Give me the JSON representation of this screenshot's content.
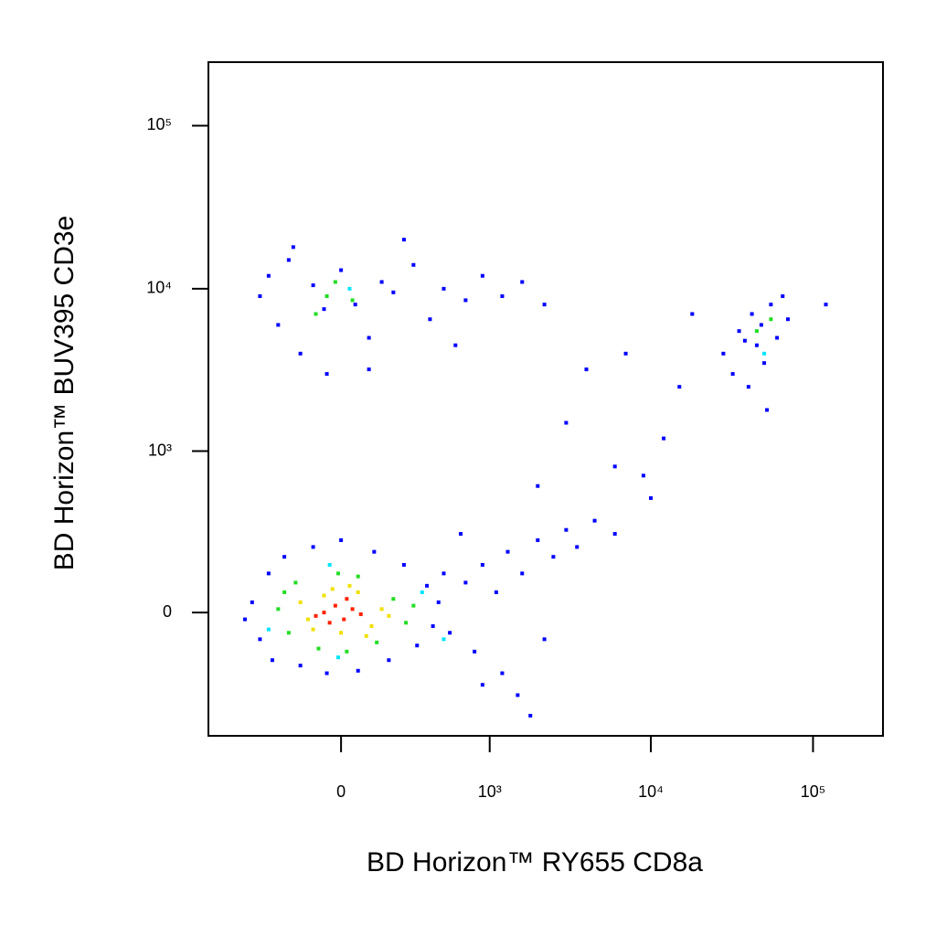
{
  "chart_data": {
    "type": "scatter",
    "xlabel": "BD Horizon™ RY655 CD8a",
    "ylabel": "BD Horizon™ BUV395 CD3e",
    "xscale": "biexponential",
    "yscale": "biexponential",
    "xlim": [
      -790,
      270000
    ],
    "ylim": [
      -572,
      245000
    ],
    "xticks": [
      0,
      {
        "value": 1000,
        "label": "10³"
      },
      {
        "value": 10000,
        "label": "10⁴"
      },
      {
        "value": 100000,
        "label": "10⁵"
      }
    ],
    "yticks": [
      0,
      {
        "value": 1000,
        "label": "10³"
      },
      {
        "value": 10000,
        "label": "10⁴"
      },
      {
        "value": 100000,
        "label": "10⁵"
      }
    ],
    "series": [
      {
        "color": "#0000ff",
        "x": [
          -400,
          -350,
          -300,
          -280,
          -220,
          -150,
          -100,
          -50,
          0,
          60,
          120,
          180,
          250,
          320,
          380,
          420,
          460,
          -450,
          500,
          550,
          700,
          900,
          1100,
          1300,
          1600,
          2000,
          2500,
          3000,
          3500,
          4500,
          6000,
          800,
          1200,
          1500,
          1800,
          2200,
          900,
          650,
          3000,
          6000,
          9000,
          15000,
          4000,
          12000,
          2000,
          7000,
          18000,
          10000,
          -350,
          -300,
          -250,
          -200,
          -150,
          -100,
          -60,
          0,
          50,
          100,
          150,
          200,
          300,
          400,
          500,
          700,
          900,
          1200,
          1600,
          2200,
          -50,
          100,
          250,
          -180,
          600,
          28000,
          32000,
          35000,
          40000,
          42000,
          45000,
          48000,
          50000,
          55000,
          60000,
          65000,
          70000,
          38000,
          52000,
          120000
        ],
        "y": [
          30,
          -80,
          120,
          -150,
          180,
          -170,
          220,
          -200,
          250,
          -190,
          200,
          -150,
          150,
          -100,
          80,
          -40,
          30,
          -20,
          120,
          -60,
          90,
          150,
          60,
          200,
          120,
          250,
          180,
          300,
          220,
          350,
          280,
          -120,
          -200,
          -300,
          -420,
          -80,
          -250,
          280,
          1500,
          800,
          700,
          2500,
          3200,
          1200,
          600,
          4000,
          7000,
          500,
          9000,
          12000,
          6000,
          15000,
          4000,
          10500,
          7500,
          13000,
          8000,
          5000,
          11000,
          9500,
          14000,
          6500,
          10000,
          8500,
          12000,
          9000,
          11000,
          8000,
          3000,
          3200,
          20000,
          18000,
          4500,
          4000,
          3000,
          5500,
          2500,
          7000,
          4500,
          6000,
          3500,
          8000,
          5000,
          9000,
          6500,
          4800,
          1800,
          8000
        ]
      },
      {
        "color": "#00e5ff",
        "x": [
          -300,
          350,
          -40,
          500,
          30,
          50000,
          -10
        ],
        "y": [
          -50,
          60,
          150,
          -80,
          10000,
          4000,
          -140
        ]
      },
      {
        "color": "#22dd22",
        "x": [
          -250,
          -200,
          200,
          260,
          -170,
          130,
          -80,
          60,
          300,
          -220,
          20,
          -10,
          -50,
          -20,
          40,
          -90,
          45000,
          55000
        ],
        "y": [
          10,
          -60,
          40,
          -30,
          90,
          -90,
          -110,
          110,
          20,
          60,
          -120,
          120,
          9000,
          11000,
          8500,
          7000,
          5500,
          6500
        ]
      },
      {
        "color": "#f0e000",
        "x": [
          -150,
          -100,
          60,
          110,
          -30,
          150,
          -120,
          90,
          0,
          -60,
          180,
          30
        ],
        "y": [
          30,
          -50,
          60,
          -40,
          70,
          10,
          -20,
          -70,
          -60,
          50,
          -10,
          80
        ]
      },
      {
        "color": "#ff2000",
        "x": [
          -60,
          -20,
          10,
          40,
          -90,
          20,
          -40,
          70
        ],
        "y": [
          0,
          20,
          -20,
          10,
          -10,
          40,
          -30,
          -5
        ]
      }
    ]
  }
}
